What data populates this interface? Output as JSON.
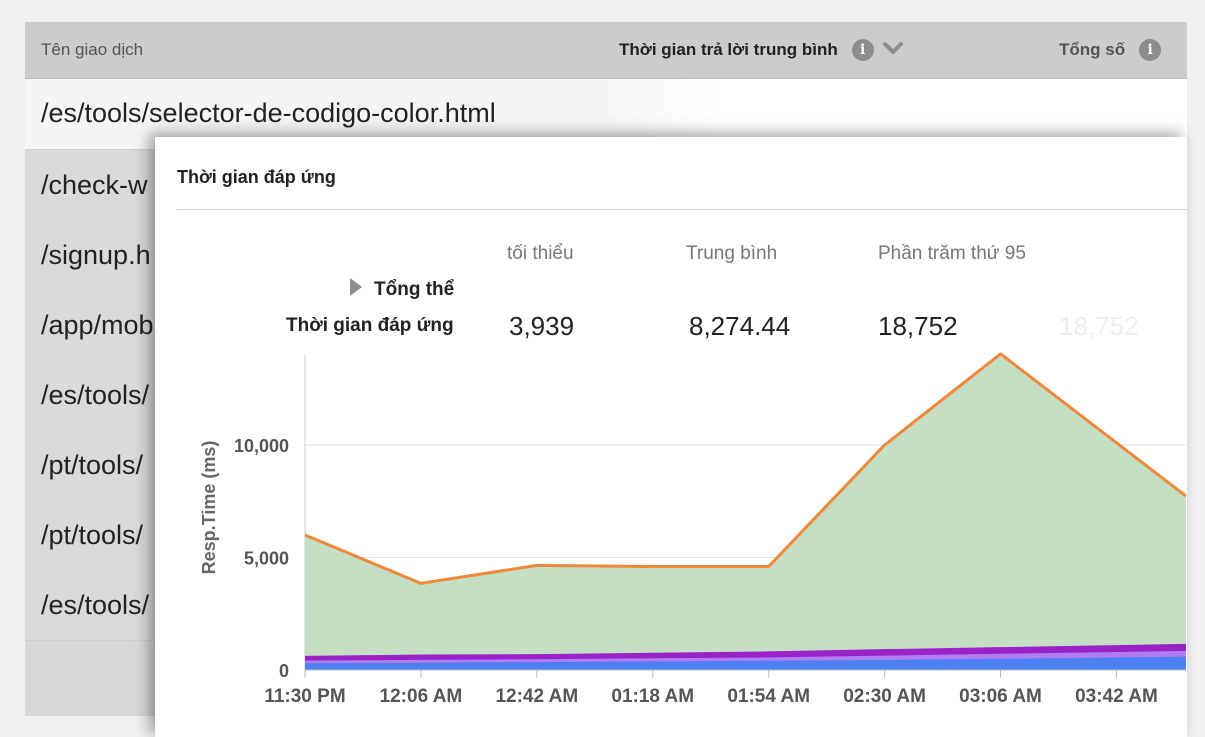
{
  "table": {
    "headers": {
      "name": "Tên giao dịch",
      "avg_response": "Thời gian trả lời trung bình",
      "total": "Tổng số"
    },
    "selected_row": "/es/tools/selector-de-codigo-color.html",
    "rows": [
      "/check-w",
      "/signup.h",
      "/app/mob",
      "/es/tools/",
      "/pt/tools/",
      "/pt/tools/",
      "/es/tools/"
    ]
  },
  "popup": {
    "title": "Thời gian đáp ứng",
    "stats": {
      "headers": [
        "tối thiểu",
        "Trung bình",
        "Phần trăm thứ 95"
      ],
      "overall_label": "Tổng thể",
      "row_label": "Thời gian đáp ứng",
      "values": [
        "3,939",
        "8,274.44",
        "18,752"
      ],
      "ghost_value": "18,752"
    }
  },
  "colors": {
    "area_green": "#c4dfc4",
    "line_orange": "#f0883a",
    "purple": "#9a22c8",
    "violet": "#b07cf0",
    "blue": "#4d7ff5"
  },
  "icons": {
    "info": "info-circle-icon",
    "sort": "chevron-down-icon",
    "expand": "chevron-right-icon"
  },
  "chart_data": {
    "type": "area",
    "ylabel": "Resp.Time (ms)",
    "xlabel": "",
    "ylim": [
      0,
      14000
    ],
    "yticks": [
      0,
      5000,
      10000
    ],
    "ytick_labels": [
      "0",
      "5,000",
      "10,000"
    ],
    "x": [
      "11:30 PM",
      "12:06 AM",
      "12:42 AM",
      "01:18 AM",
      "01:54 AM",
      "02:30 AM",
      "03:06 AM",
      "03:42 AM"
    ],
    "grid": true,
    "series": [
      {
        "color": "#c4dfc4",
        "values": [
          6000,
          3850,
          4650,
          4600,
          4600,
          10000,
          14050,
          10100
        ]
      },
      {
        "color": "#f0883a",
        "values": [
          6000,
          3850,
          4650,
          4600,
          4600,
          10000,
          14050,
          10100
        ]
      },
      {
        "color": "#9a22c8",
        "values": [
          560,
          620,
          640,
          700,
          760,
          860,
          950,
          1040
        ]
      },
      {
        "color": "#b07cf0",
        "values": [
          420,
          450,
          480,
          520,
          560,
          640,
          720,
          800
        ]
      },
      {
        "color": "#4d7ff5",
        "values": [
          300,
          320,
          350,
          380,
          410,
          450,
          500,
          560
        ]
      }
    ]
  }
}
